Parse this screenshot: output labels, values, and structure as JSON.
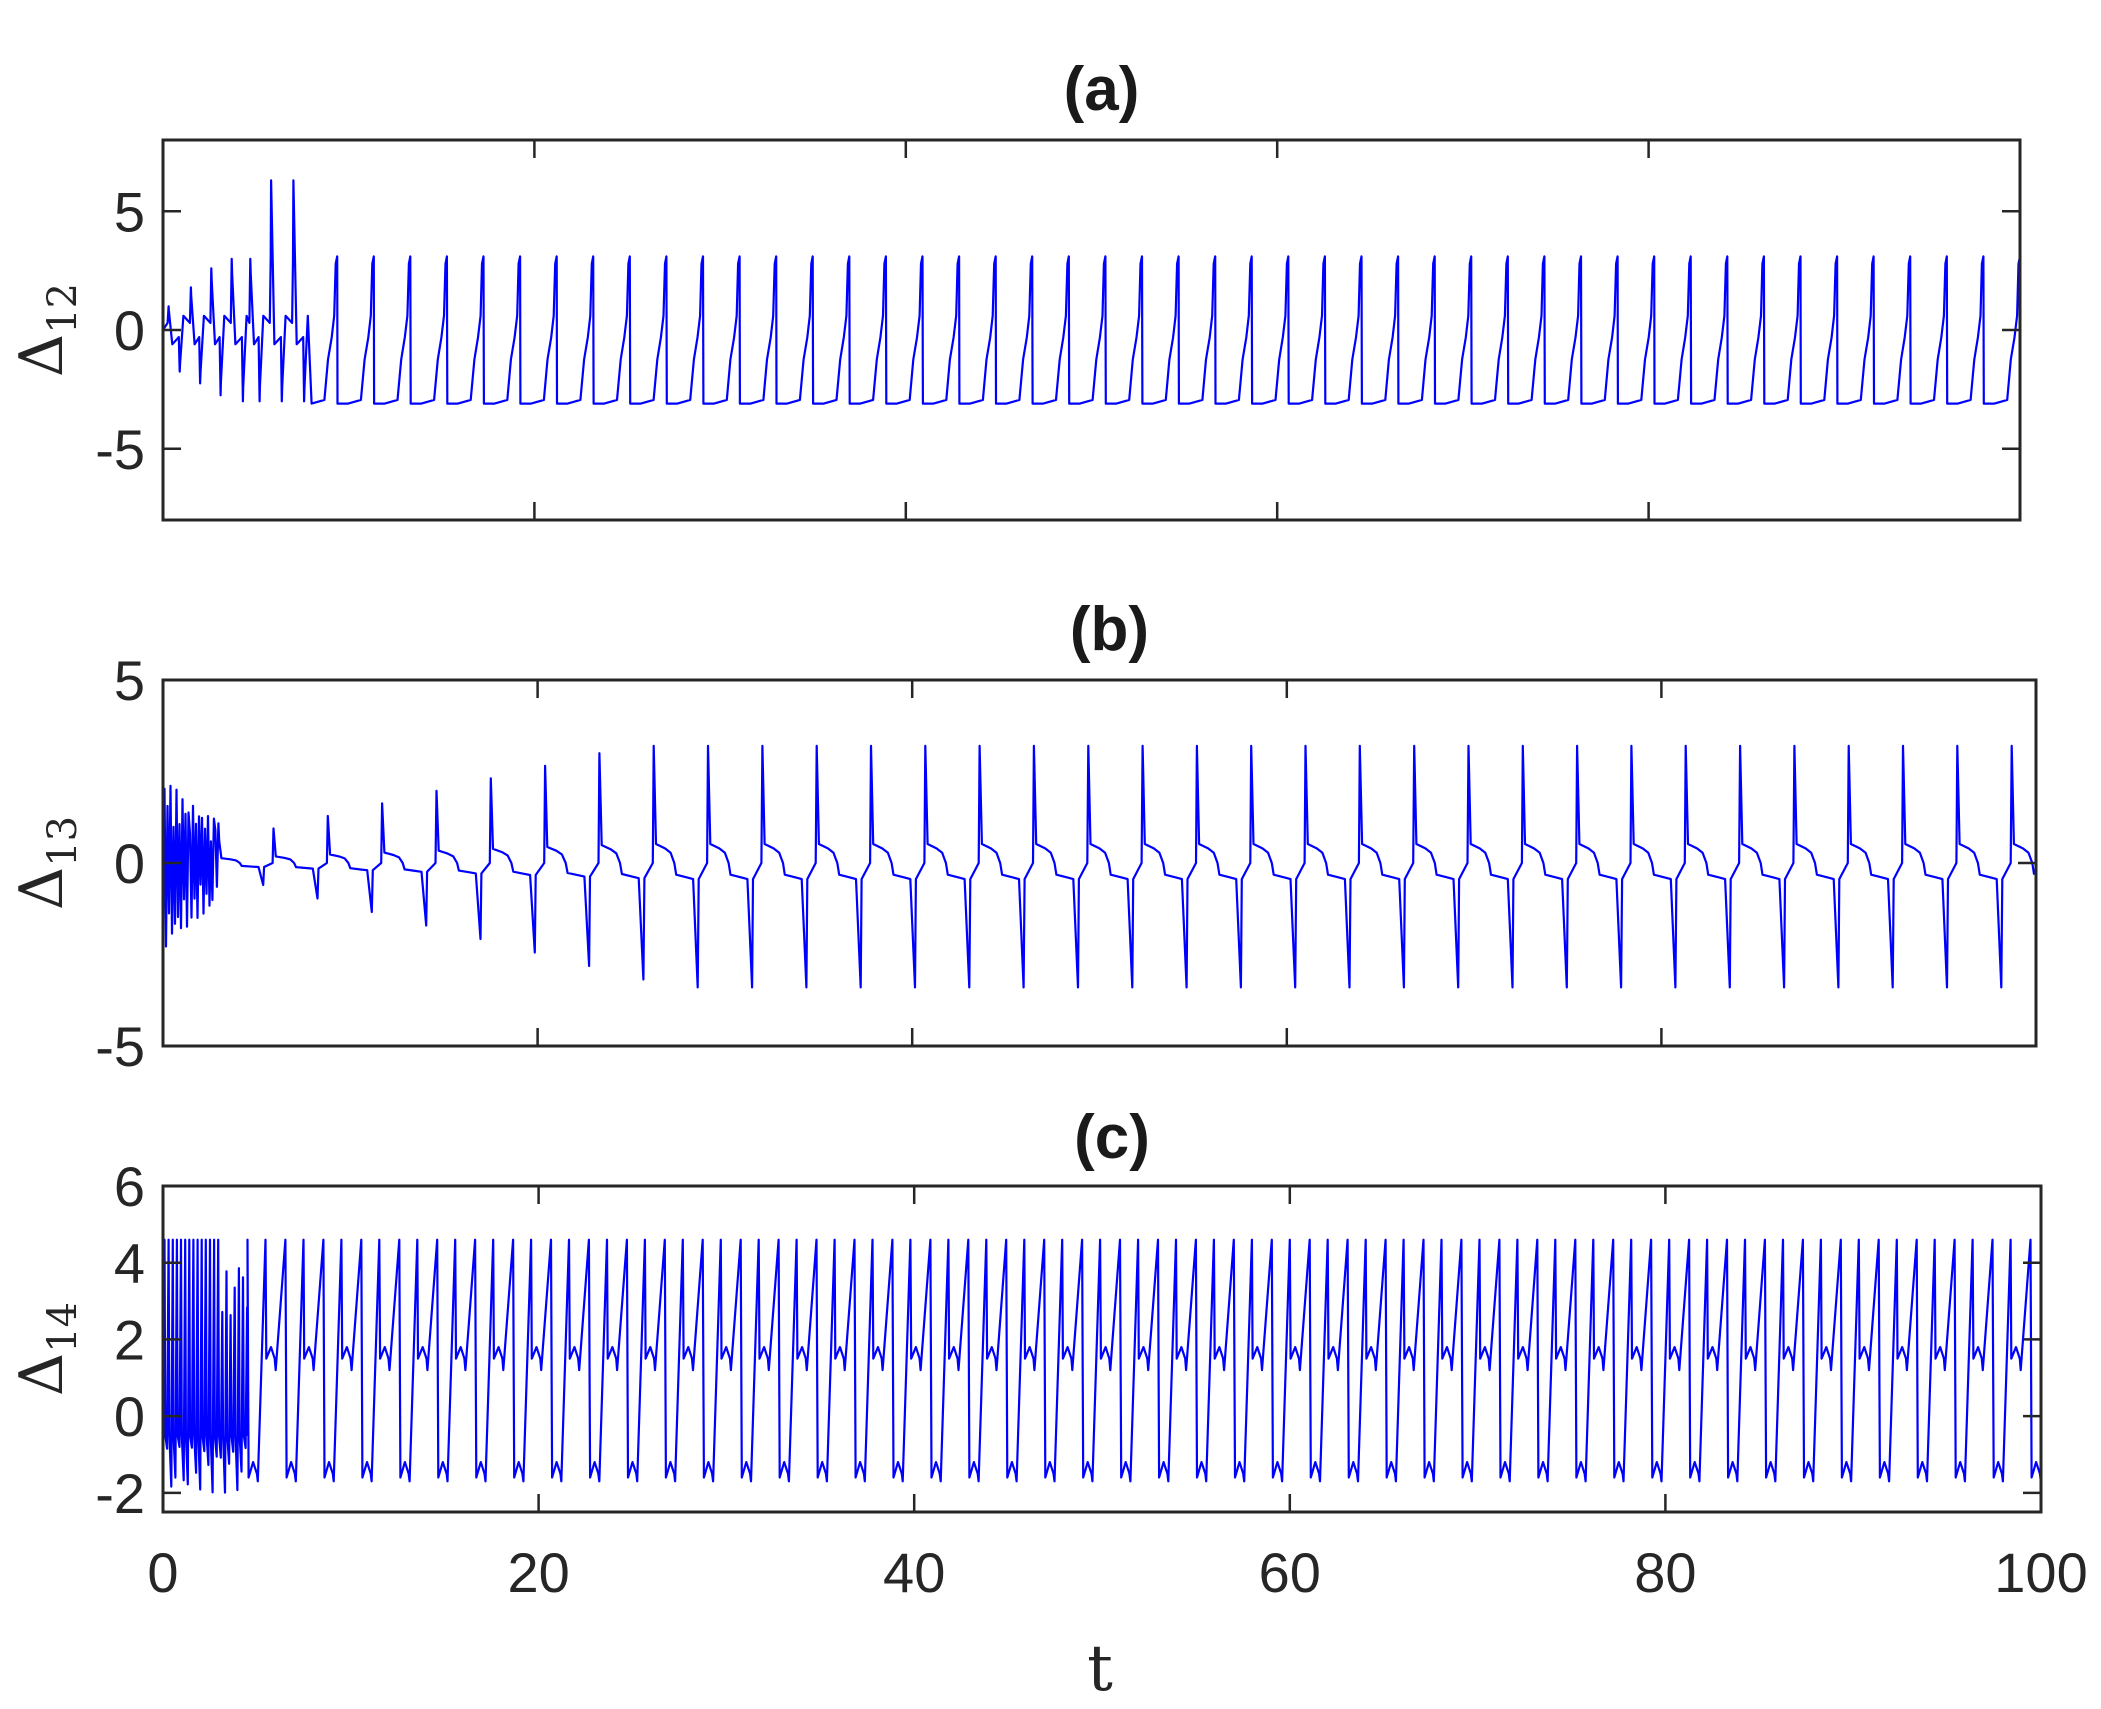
{
  "colors": {
    "series": "#0000ff",
    "axes": "#262626"
  },
  "chart_data": [
    {
      "type": "line",
      "title": "(a)",
      "ylabel": "Δ",
      "ylabel_sub": "12",
      "xlim": [
        0,
        100
      ],
      "ylim": [
        -8,
        8
      ],
      "yticks": [
        -5,
        0,
        5
      ],
      "ytick_labels": [
        "-5",
        "0",
        "5"
      ],
      "xticks": [
        0,
        20,
        40,
        60,
        80,
        100
      ],
      "show_xtick_labels": false,
      "series": [
        {
          "pattern": "square-spikes",
          "t_settle": 8,
          "transient_peak": 6.3,
          "high_level": 3.1,
          "low_level": -3.1,
          "period": 1.97,
          "t_end": 100
        }
      ]
    },
    {
      "type": "line",
      "title": "(b)",
      "ylabel": "Δ",
      "ylabel_sub": "13",
      "xlim": [
        0,
        100
      ],
      "ylim": [
        -5,
        5
      ],
      "yticks": [
        -5,
        0,
        5
      ],
      "ytick_labels": [
        "-5",
        "0",
        "5"
      ],
      "xticks": [
        0,
        20,
        40,
        60,
        80,
        100
      ],
      "show_xtick_labels": false,
      "series": [
        {
          "pattern": "double-spikes",
          "t_settle": 3,
          "spike_amplitude": 3.2,
          "plateau_level": 0.4,
          "period": 2.9,
          "t_end": 100
        }
      ]
    },
    {
      "type": "line",
      "title": "(c)",
      "ylabel": "Δ",
      "ylabel_sub": "14",
      "xlabel": "t",
      "xlim": [
        0,
        100
      ],
      "ylim": [
        -2.5,
        6
      ],
      "yticks": [
        -2,
        0,
        2,
        4,
        6
      ],
      "ytick_labels": [
        "-2",
        "0",
        "2",
        "4",
        "6"
      ],
      "xticks": [
        0,
        20,
        40,
        60,
        80,
        100
      ],
      "xtick_labels": [
        "0",
        "20",
        "40",
        "60",
        "80",
        "100"
      ],
      "show_xtick_labels": true,
      "series": [
        {
          "pattern": "bursting",
          "t_settle": 4.5,
          "spike_top": 4.6,
          "upper_level": 1.8,
          "lower_level": -1.5,
          "period": 2.02,
          "t_end": 100
        }
      ]
    }
  ]
}
